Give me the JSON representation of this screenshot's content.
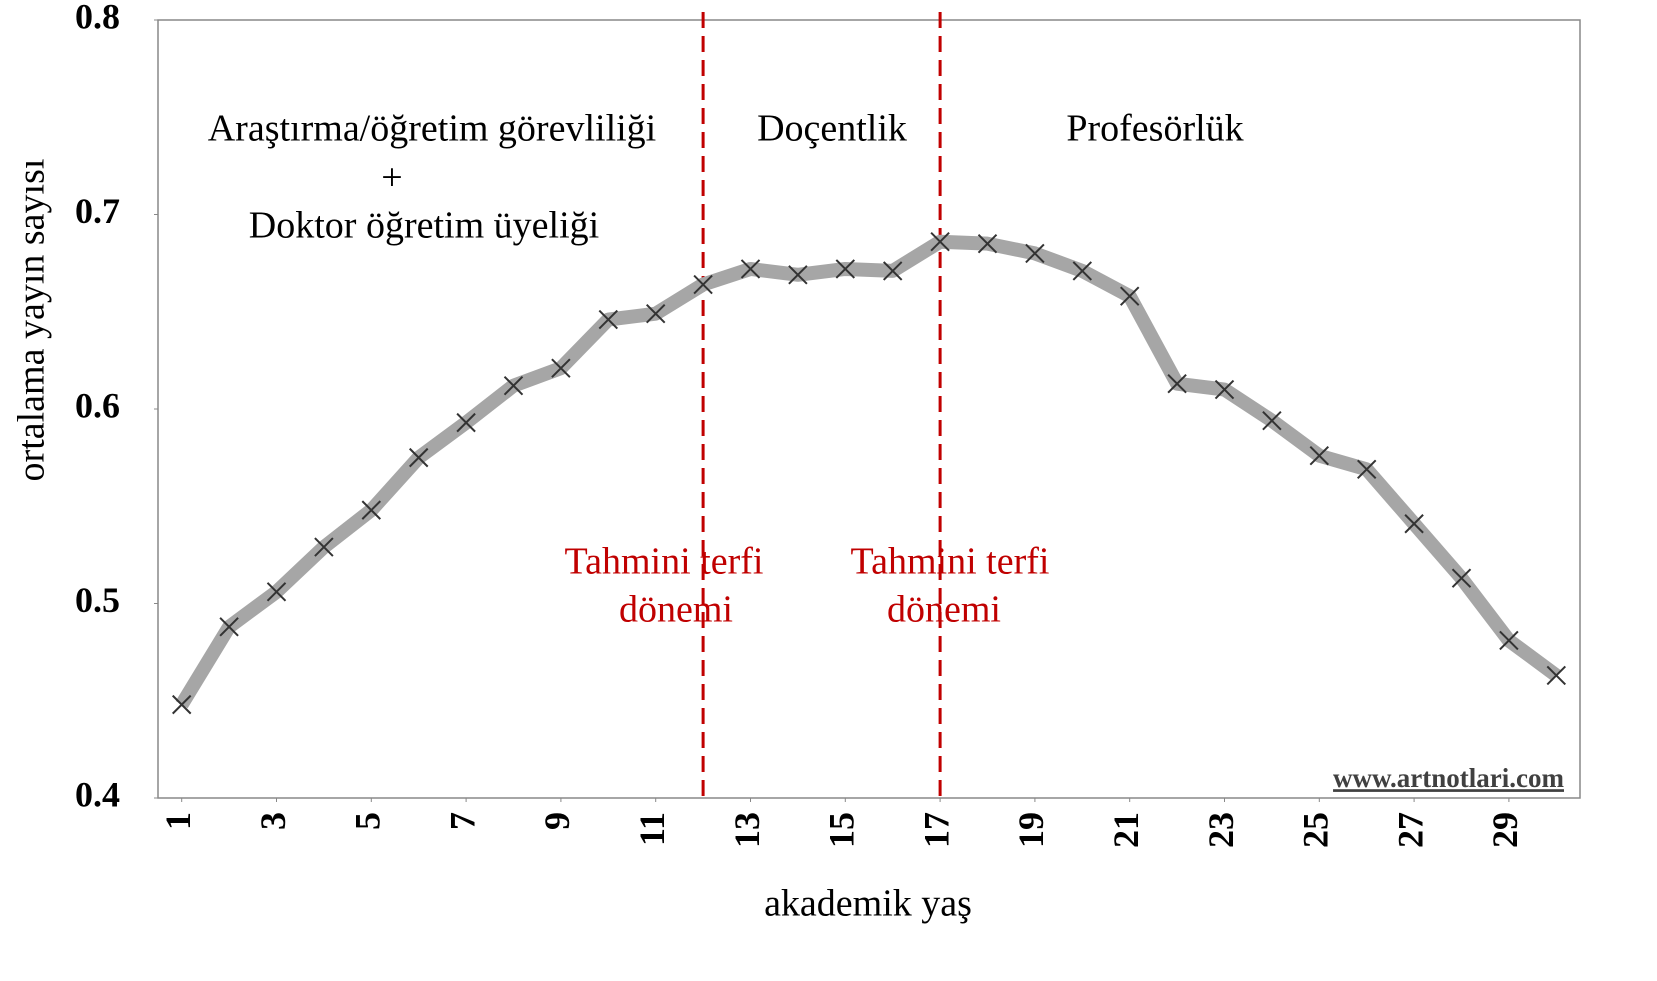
{
  "chart_data": {
    "type": "line",
    "xlabel": "akademik yaş",
    "ylabel": "ortalama yayın sayısı",
    "x": [
      1,
      2,
      3,
      4,
      5,
      6,
      7,
      8,
      9,
      10,
      11,
      12,
      13,
      14,
      15,
      16,
      17,
      18,
      19,
      20,
      21,
      22,
      23,
      24,
      25,
      26,
      27,
      28,
      29,
      30
    ],
    "series": [
      {
        "color": "#a6a6a6",
        "marker_color": "#333333",
        "values": [
          0.448,
          0.488,
          0.506,
          0.529,
          0.548,
          0.575,
          0.593,
          0.612,
          0.621,
          0.646,
          0.649,
          0.664,
          0.672,
          0.669,
          0.672,
          0.671,
          0.686,
          0.685,
          0.68,
          0.671,
          0.658,
          0.613,
          0.61,
          0.594,
          0.576,
          0.569,
          0.541,
          0.513,
          0.481,
          0.463
        ]
      }
    ],
    "xlim": [
      0.5,
      30.5
    ],
    "xticks": [
      1,
      3,
      5,
      7,
      9,
      11,
      13,
      15,
      17,
      19,
      21,
      23,
      25,
      27,
      29
    ],
    "ylim": [
      0.4,
      0.8
    ],
    "yticks": [
      0.4,
      0.5,
      0.6,
      0.7,
      0.8
    ],
    "vlines": {
      "color": "#c00000",
      "values": [
        12,
        17
      ]
    },
    "regions": [
      [
        "Araştırma/öğretim görevliliği",
        "+",
        "Doktor öğretim üyeliği"
      ],
      [
        "Doçentlik"
      ],
      [
        "Profesörlük"
      ]
    ],
    "promotion_labels": [
      [
        "Tahmini terfi",
        "dönemi"
      ],
      [
        "Tahmini terfi",
        "dönemi"
      ]
    ],
    "watermark": "www.artnotlari.com"
  }
}
